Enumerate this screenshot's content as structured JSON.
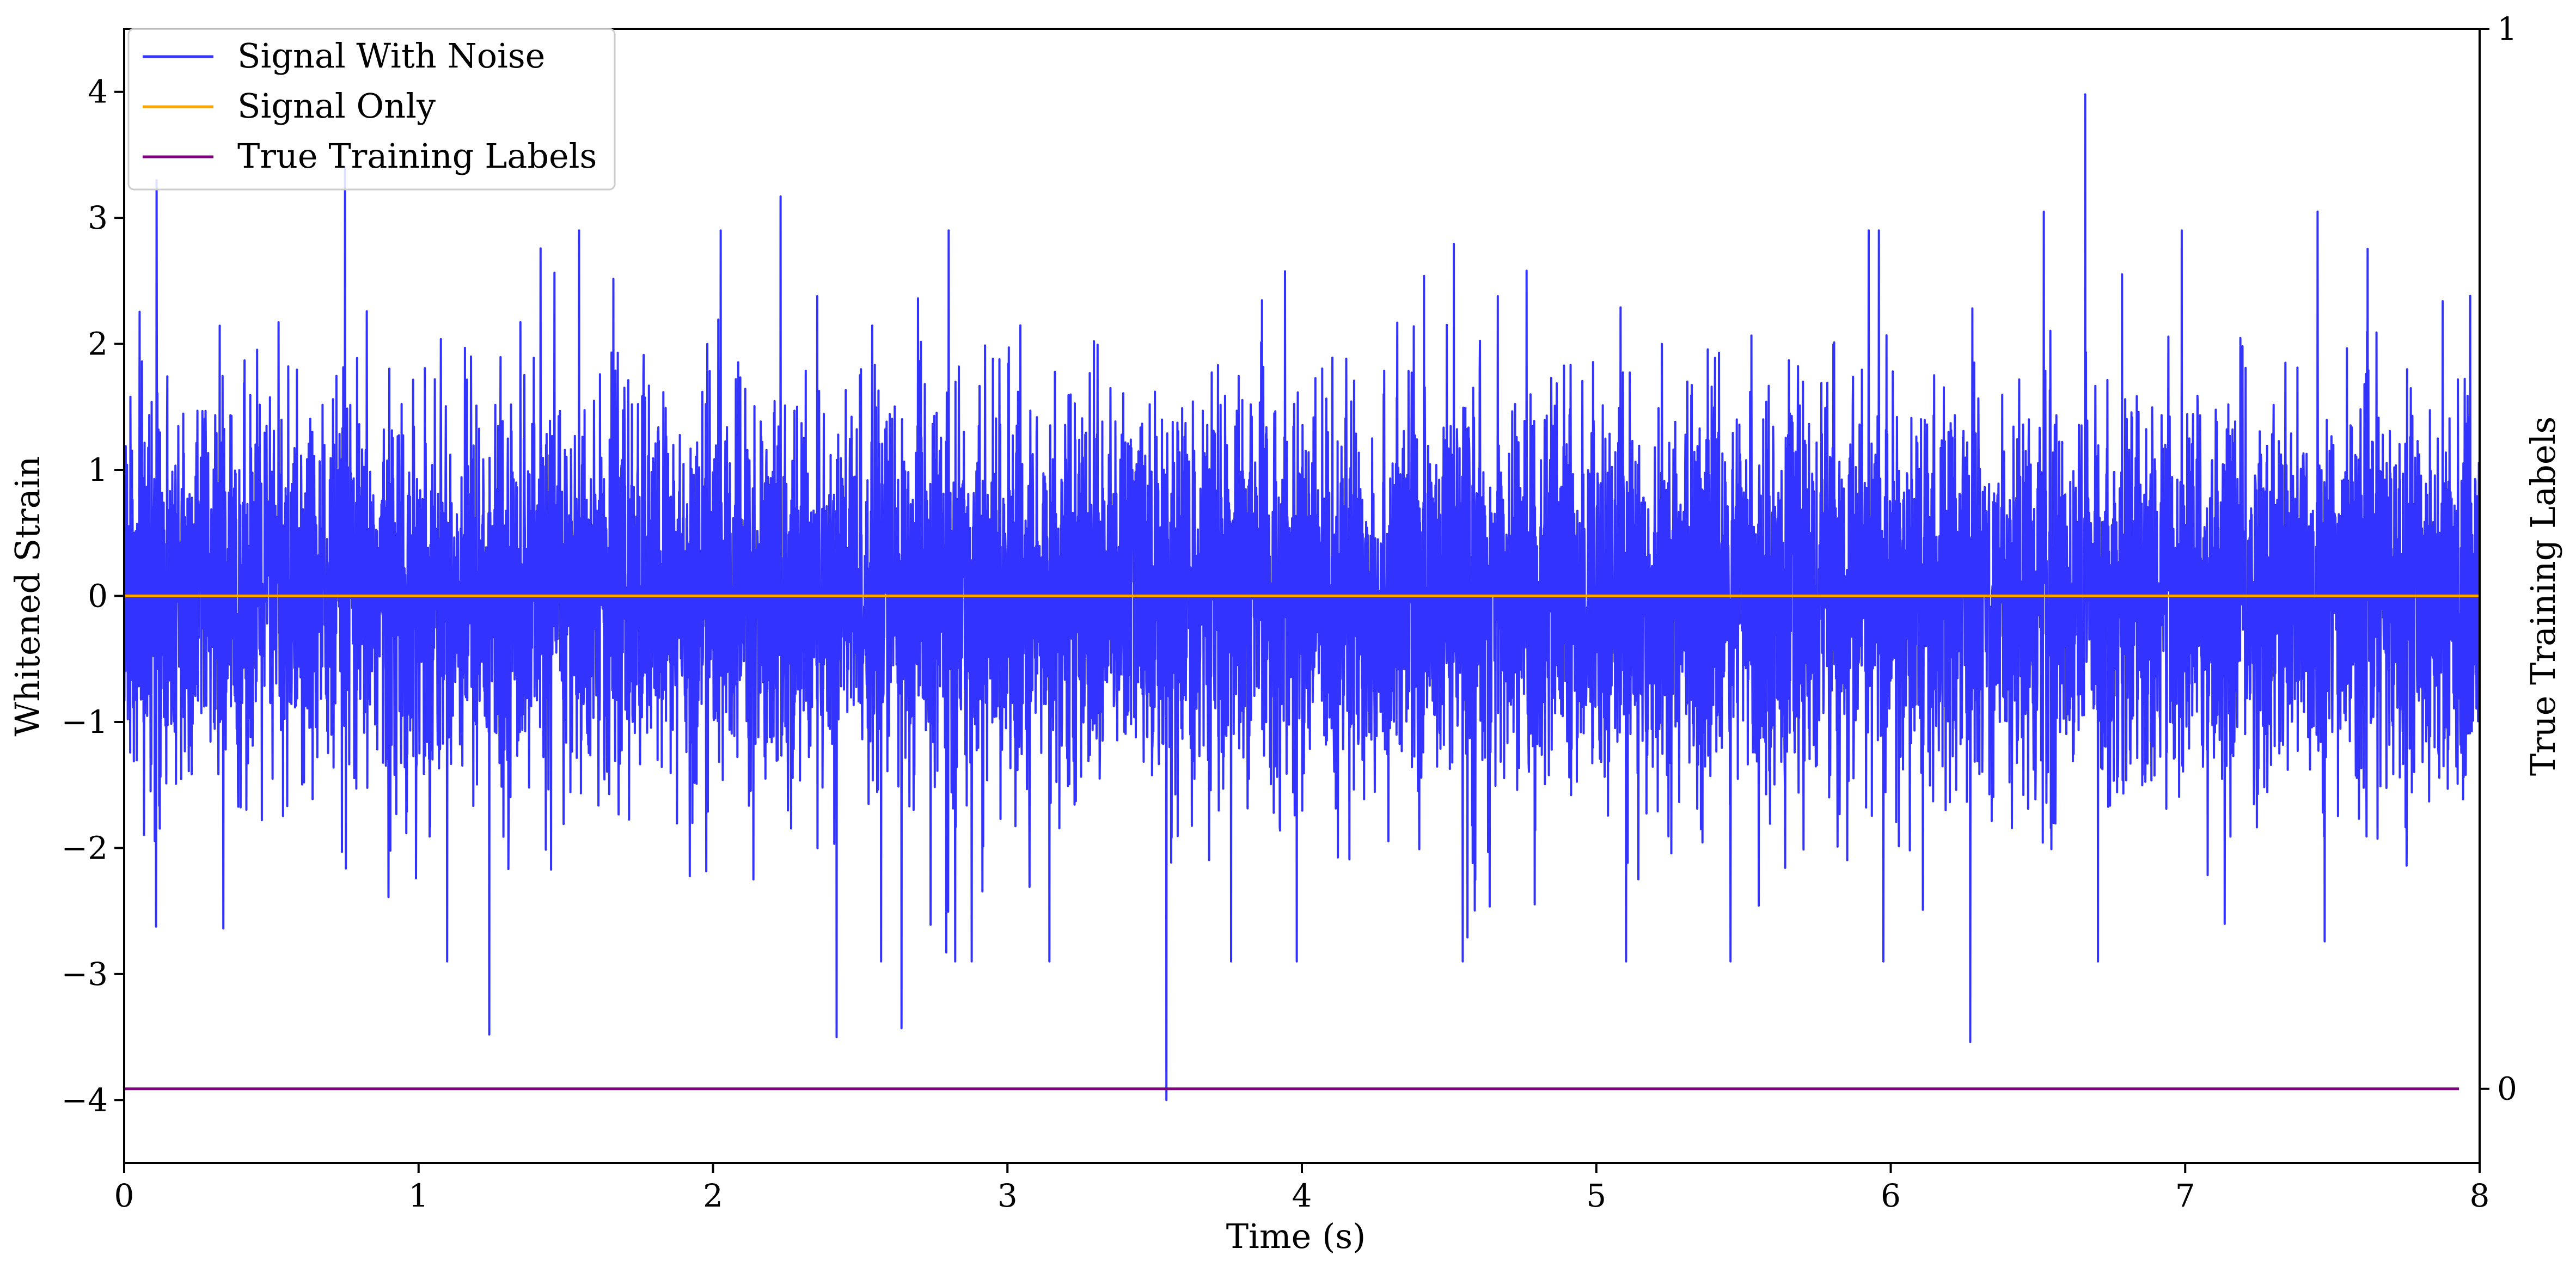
{
  "chart_data": {
    "type": "line",
    "title": "",
    "xlabel": "Time (s)",
    "ylabel": "Whitened Strain",
    "y2label": "True Training Labels",
    "xlim": [
      0,
      8
    ],
    "ylim": [
      -4.5,
      4.5
    ],
    "y2lim": [
      -0.07,
      1.0
    ],
    "x_ticks": [
      0,
      1,
      2,
      3,
      4,
      5,
      6,
      7,
      8
    ],
    "x_tick_labels": [
      "0",
      "1",
      "2",
      "3",
      "4",
      "5",
      "6",
      "7",
      "8"
    ],
    "y_ticks": [
      -4,
      -3,
      -2,
      -1,
      0,
      1,
      2,
      3,
      4
    ],
    "y_tick_labels": [
      "−4",
      "−3",
      "−2",
      "−1",
      "0",
      "1",
      "2",
      "3",
      "4"
    ],
    "y2_ticks": [
      0,
      1
    ],
    "y2_tick_labels": [
      "0",
      "1"
    ],
    "grid": false,
    "legend_position": "top-left",
    "series": [
      {
        "name": "Signal With Noise",
        "color": "#3333ff",
        "axis": "left",
        "description_values": "dense noise, roughly |y| <= 1.5 with frequent spikes",
        "notable_points": [
          {
            "x": 0.11,
            "y": 3.3
          },
          {
            "x": 0.75,
            "y": 3.4
          },
          {
            "x": 1.24,
            "y": -3.48
          },
          {
            "x": 2.23,
            "y": 3.17
          },
          {
            "x": 2.42,
            "y": -3.5
          },
          {
            "x": 2.64,
            "y": -3.43
          },
          {
            "x": 3.54,
            "y": -4.0
          },
          {
            "x": 6.27,
            "y": -3.54
          },
          {
            "x": 6.52,
            "y": 3.05
          },
          {
            "x": 6.66,
            "y": 3.98
          },
          {
            "x": 7.45,
            "y": 3.05
          }
        ]
      },
      {
        "name": "Signal Only",
        "color": "#ffa500",
        "axis": "left",
        "x": [
          0,
          8
        ],
        "y": [
          0,
          0
        ]
      },
      {
        "name": "True Training Labels",
        "color": "#800080",
        "axis": "right",
        "x": [
          0,
          7.93
        ],
        "y": [
          0,
          0
        ]
      }
    ]
  }
}
